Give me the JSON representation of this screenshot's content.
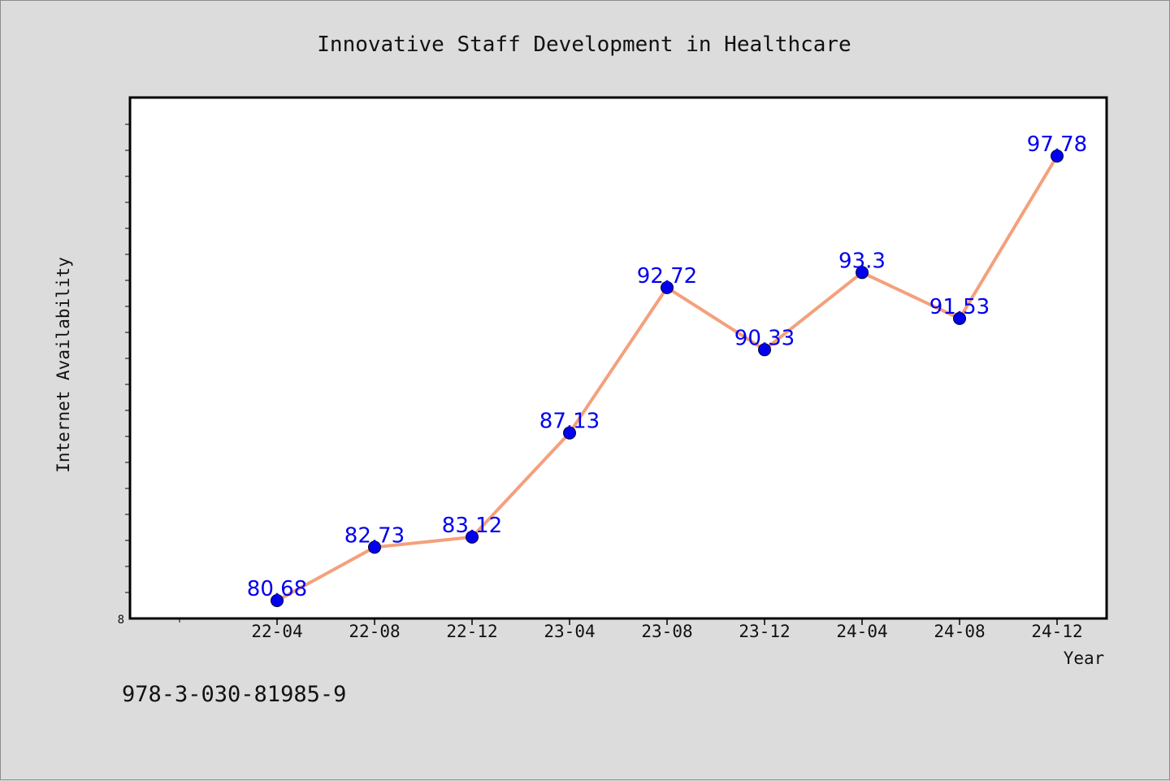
{
  "chart_data": {
    "type": "line",
    "title": "Innovative Staff Development in Healthcare",
    "xlabel": "Year",
    "ylabel": "Internet Availability",
    "categories": [
      "22-04",
      "22-08",
      "22-12",
      "23-04",
      "23-08",
      "23-12",
      "24-04",
      "24-08",
      "24-12"
    ],
    "series": [
      {
        "values": [
          80.68,
          82.73,
          83.12,
          87.13,
          92.72,
          90.33,
          93.3,
          91.53,
          97.78
        ]
      }
    ],
    "data_labels": [
      "80.68",
      "82.73",
      "83.12",
      "87.13",
      "92.72",
      "90.33",
      "93.3",
      "91.53",
      "97.78"
    ],
    "y_tick_label": "8",
    "ylim": [
      80,
      100
    ],
    "grid": false,
    "legend": "none",
    "colors": {
      "line": "#f4a07c",
      "marker": "#0000ee",
      "label": "#0000ee",
      "background": "#dcdcdc",
      "plot_background": "#ffffff"
    }
  },
  "footnote": "978-3-030-81985-9"
}
